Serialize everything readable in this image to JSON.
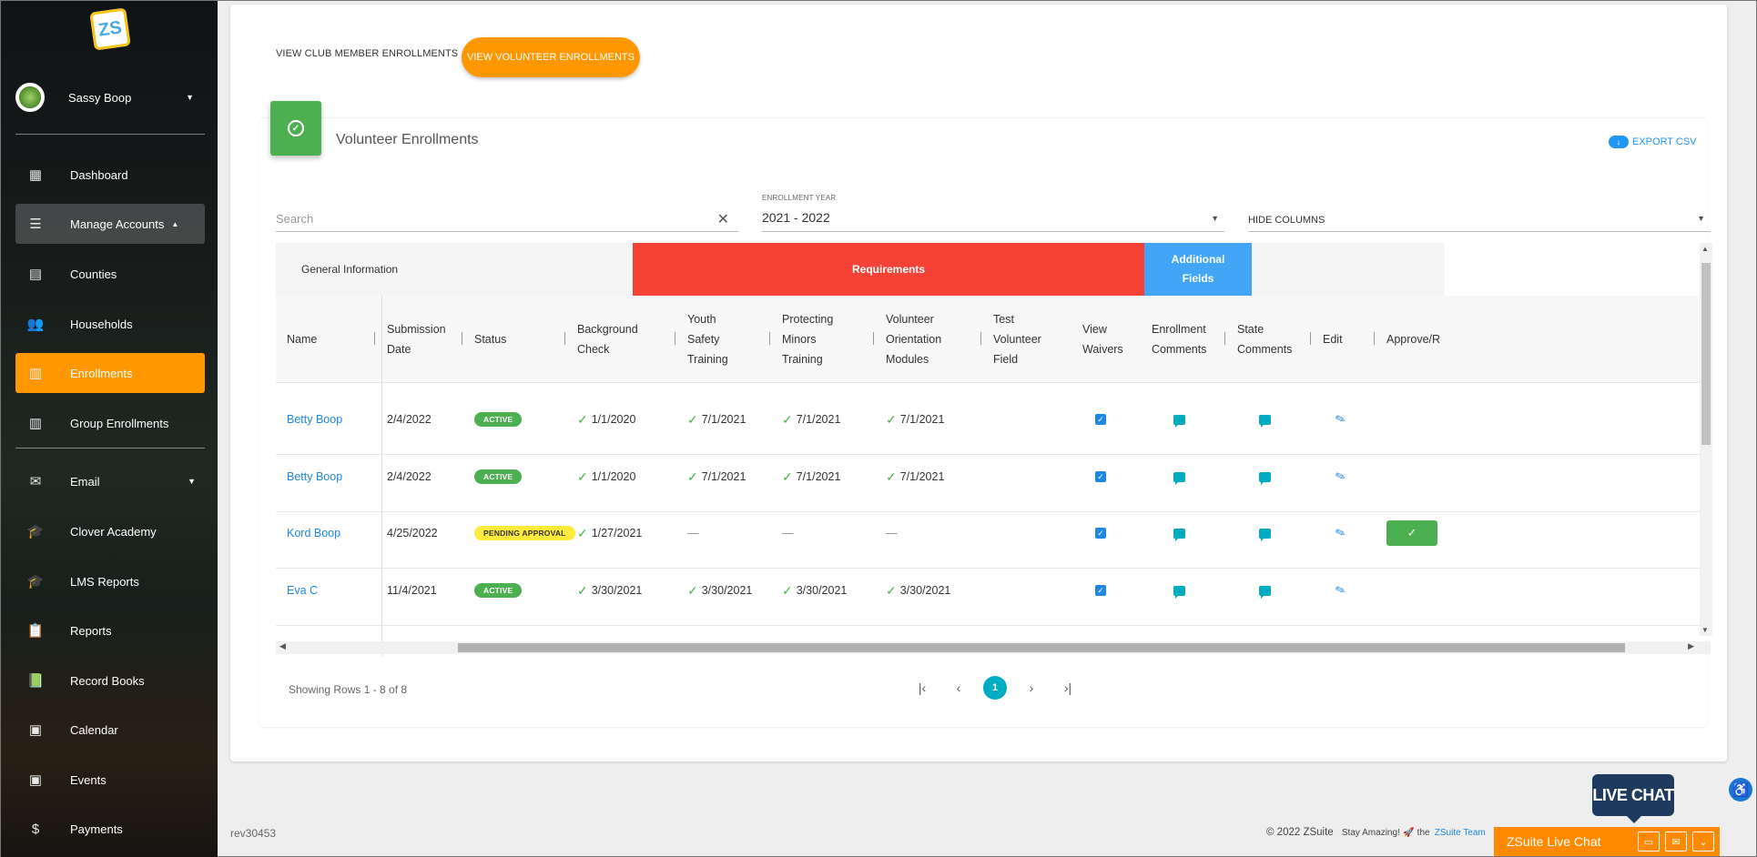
{
  "sidebar": {
    "logo_text": "ZS",
    "user_name": "Sassy Boop",
    "items": [
      {
        "label": "Dashboard",
        "icon": "dashboard-icon"
      },
      {
        "label": "Manage Accounts",
        "icon": "list-icon"
      },
      {
        "label": "Counties",
        "icon": "document-icon"
      },
      {
        "label": "Households",
        "icon": "people-icon"
      },
      {
        "label": "Enrollments",
        "icon": "enrollment-icon"
      },
      {
        "label": "Group Enrollments",
        "icon": "enrollment-icon"
      },
      {
        "label": "Email",
        "icon": "mail-icon"
      },
      {
        "label": "Clover Academy",
        "icon": "graduation-cap-icon"
      },
      {
        "label": "LMS Reports",
        "icon": "graduation-cap-icon"
      },
      {
        "label": "Reports",
        "icon": "clipboard-icon"
      },
      {
        "label": "Record Books",
        "icon": "record-book-icon"
      },
      {
        "label": "Calendar",
        "icon": "calendar-icon"
      },
      {
        "label": "Events",
        "icon": "event-icon"
      },
      {
        "label": "Payments",
        "icon": "dollar-icon"
      }
    ]
  },
  "tabs": {
    "club": "VIEW CLUB MEMBER ENROLLMENTS",
    "volunteer": "VIEW VOLUNTEER ENROLLMENTS"
  },
  "card": {
    "title": "Volunteer Enrollments",
    "export_label": "EXPORT CSV"
  },
  "filters": {
    "search_placeholder": "Search",
    "year_label": "ENROLLMENT YEAR",
    "year_value": "2021 - 2022",
    "hide_columns": "HIDE COLUMNS"
  },
  "table": {
    "groups": {
      "general": "General Information",
      "requirements": "Requirements",
      "additional": "Additional Fields"
    },
    "columns": {
      "name": "Name",
      "submission": "Submission Date",
      "status": "Status",
      "background": "Background Check",
      "youth": "Youth Safety Training",
      "minors": "Protecting Minors Training",
      "orientation": "Volunteer Orientation Modules",
      "test": "Test Volunteer Field",
      "waivers": "View Waivers",
      "enroll_comments": "Enrollment Comments",
      "state_comments": "State Comments",
      "edit": "Edit",
      "approve": "Approve/R"
    },
    "rows": [
      {
        "name": "Betty Boop",
        "date": "2/4/2022",
        "status": "ACTIVE",
        "bg": "1/1/2020",
        "youth": "7/1/2021",
        "minors": "7/1/2021",
        "orient": "7/1/2021"
      },
      {
        "name": "Betty Boop",
        "date": "2/4/2022",
        "status": "ACTIVE",
        "bg": "1/1/2020",
        "youth": "7/1/2021",
        "minors": "7/1/2021",
        "orient": "7/1/2021"
      },
      {
        "name": "Kord Boop",
        "date": "4/25/2022",
        "status": "PENDING APPROVAL",
        "bg": "1/27/2021",
        "youth": "—",
        "minors": "—",
        "orient": "—"
      },
      {
        "name": "Eva C",
        "date": "11/4/2021",
        "status": "ACTIVE",
        "bg": "3/30/2021",
        "youth": "3/30/2021",
        "minors": "3/30/2021",
        "orient": "3/30/2021"
      }
    ]
  },
  "pagination": {
    "showing": "Showing Rows 1 - 8 of 8",
    "current_page": "1"
  },
  "footer": {
    "rev": "rev30453",
    "copyright": "© 2022 ZSuite",
    "stay": "Stay Amazing!",
    "the": "the",
    "team": "ZSuite Team"
  },
  "livechat": {
    "bubble": "LIVE CHAT",
    "bar_label": "ZSuite Live Chat"
  },
  "colors": {
    "accent": "#ff9800",
    "requirements": "#f44336",
    "additional": "#42a5f5",
    "active": "#4caf50",
    "pending": "#ffeb3b",
    "link": "#1e88e5"
  }
}
